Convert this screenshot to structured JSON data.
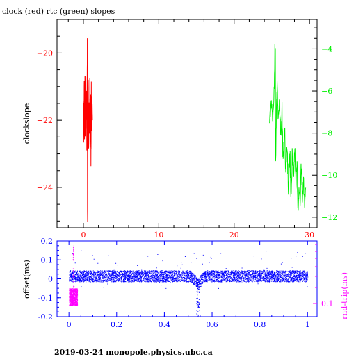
{
  "title": "clock (red) rtc (green) slopes",
  "footer": "2019-03-24 monopole.physics.ubc.ca",
  "colors": {
    "clock": "#ff0000",
    "rtc": "#00ee00",
    "offset": "#0000ff",
    "roundtrip": "#ff00ff",
    "axis": "#000000"
  },
  "chart_data": [
    {
      "type": "line",
      "title": "clock (red) rtc (green) slopes",
      "ylabel": "clockslope",
      "xlim": [
        -3.5,
        31
      ],
      "ylim": [
        -25.2,
        -19.0
      ],
      "y2lim": [
        -12.5,
        -2.6
      ],
      "x_ticks": [
        0,
        10,
        20,
        30
      ],
      "y_ticks": [
        -20,
        -22,
        -24
      ],
      "y2_ticks": [
        -4,
        -6,
        -8,
        -10,
        -12
      ],
      "series": [
        {
          "name": "clock",
          "color": "#ff0000",
          "axis": "left",
          "x_range": [
            0.0,
            1.2
          ],
          "y_range": [
            -24.9,
            -19.7
          ],
          "points": [
            [
              0.0,
              -21.5
            ],
            [
              0.05,
              -22.6
            ],
            [
              0.1,
              -20.8
            ],
            [
              0.15,
              -22.4
            ],
            [
              0.2,
              -21.0
            ],
            [
              0.25,
              -22.5
            ],
            [
              0.3,
              -20.9
            ],
            [
              0.35,
              -21.9
            ],
            [
              0.4,
              -21.2
            ],
            [
              0.45,
              -22.6
            ],
            [
              0.5,
              -21.0
            ],
            [
              0.52,
              -19.7
            ],
            [
              0.55,
              -24.9
            ],
            [
              0.6,
              -22.3
            ],
            [
              0.65,
              -20.9
            ],
            [
              0.7,
              -23.1
            ],
            [
              0.75,
              -21.3
            ],
            [
              0.8,
              -22.5
            ],
            [
              0.85,
              -21.0
            ],
            [
              0.9,
              -22.8
            ],
            [
              0.95,
              -21.2
            ],
            [
              1.0,
              -23.2
            ],
            [
              1.05,
              -21.1
            ],
            [
              1.1,
              -22.4
            ],
            [
              1.15,
              -21.4
            ],
            [
              1.2,
              -22.0
            ]
          ]
        },
        {
          "name": "rtc",
          "color": "#00ee00",
          "axis": "right",
          "x_range": [
            24.7,
            29.5
          ],
          "y_range": [
            -12.0,
            -3.4
          ],
          "points": [
            [
              24.7,
              -7.5
            ],
            [
              24.9,
              -6.4
            ],
            [
              25.1,
              -7.2
            ],
            [
              25.3,
              -6.1
            ],
            [
              25.45,
              -3.4
            ],
            [
              25.5,
              -9.9
            ],
            [
              25.6,
              -6.9
            ],
            [
              25.7,
              -5.8
            ],
            [
              25.85,
              -7.3
            ],
            [
              26.0,
              -6.7
            ],
            [
              26.2,
              -8.1
            ],
            [
              26.35,
              -7.0
            ],
            [
              26.5,
              -9.4
            ],
            [
              26.7,
              -7.8
            ],
            [
              26.85,
              -9.9
            ],
            [
              27.0,
              -8.4
            ],
            [
              27.2,
              -10.6
            ],
            [
              27.4,
              -9.0
            ],
            [
              27.55,
              -11.5
            ],
            [
              27.7,
              -8.8
            ],
            [
              27.9,
              -10.0
            ],
            [
              28.05,
              -8.7
            ],
            [
              28.2,
              -10.4
            ],
            [
              28.35,
              -9.3
            ],
            [
              28.5,
              -11.9
            ],
            [
              28.6,
              -10.4
            ],
            [
              28.75,
              -11.4
            ],
            [
              28.9,
              -9.6
            ],
            [
              29.05,
              -11.2
            ],
            [
              29.2,
              -10.2
            ],
            [
              29.35,
              -11.5
            ],
            [
              29.5,
              -10.6
            ]
          ]
        }
      ]
    },
    {
      "type": "scatter",
      "ylabel": "offset(ms)",
      "y2label": "rnd-trip(ms)",
      "xlim": [
        -0.05,
        1.04
      ],
      "ylim": [
        -0.2,
        0.2
      ],
      "x_ticks": [
        0,
        0.2,
        0.4,
        0.6,
        0.8,
        1
      ],
      "x_tick_labels": [
        "0",
        "0.2",
        "0.4",
        "0.6",
        "0.8",
        "1"
      ],
      "y_ticks": [
        0.2,
        0.1,
        0,
        -0.1,
        -0.2
      ],
      "y_tick_labels": [
        "0.2",
        "0.1",
        "0",
        "-0.1",
        "-0.2"
      ],
      "y2_ticks": [
        0.1
      ],
      "y2_tick_labels": [
        "0.1"
      ],
      "series": [
        {
          "name": "offset",
          "color": "#0000ff",
          "x_range": [
            0.0,
            1.0
          ],
          "band": [
            -0.015,
            0.045
          ],
          "outlier_range": [
            -0.05,
            0.15
          ],
          "dip": {
            "x": 0.54,
            "min": -0.2
          }
        },
        {
          "name": "roundtrip",
          "color": "#ff00ff",
          "x_range": [
            0.0,
            0.035
          ],
          "band": [
            -0.14,
            -0.05
          ],
          "spike_max": 0.18
        }
      ]
    }
  ]
}
